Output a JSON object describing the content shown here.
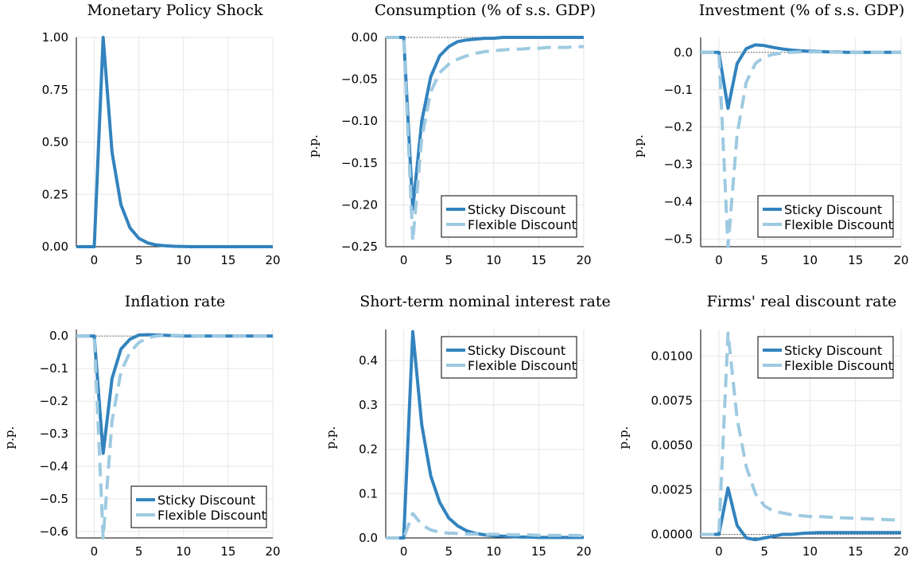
{
  "colors": {
    "sticky": "#3283be",
    "flexible": "#9ecae1"
  },
  "chart_data": [
    {
      "type": "line",
      "title": "Monetary Policy Shock",
      "ylabel": "",
      "xlim": [
        -2,
        20
      ],
      "ylim": [
        0,
        1
      ],
      "xticks": [
        "0",
        "5",
        "10",
        "15",
        "20"
      ],
      "yticks": [
        "0.00",
        "0.25",
        "0.50",
        "0.75",
        "1.00"
      ],
      "legend": "none",
      "series": [
        {
          "style": "solid",
          "color": "#3283be",
          "x": [
            -2,
            -1,
            0,
            1,
            2,
            3,
            4,
            5,
            6,
            7,
            8,
            9,
            10,
            11,
            12,
            13,
            14,
            15,
            16,
            17,
            18,
            19,
            20
          ],
          "y": [
            0,
            0,
            0,
            1.0,
            0.45,
            0.2,
            0.09,
            0.04,
            0.018,
            0.008,
            0.004,
            0.002,
            0.001,
            0,
            0,
            0,
            0,
            0,
            0,
            0,
            0,
            0,
            0
          ]
        }
      ]
    },
    {
      "type": "line",
      "title": "Consumption (% of s.s. GDP)",
      "ylabel": "p.p.",
      "xlim": [
        -2,
        20
      ],
      "ylim": [
        -0.25,
        0
      ],
      "xticks": [
        "0",
        "5",
        "10",
        "15",
        "20"
      ],
      "yticks": [
        "−0.25",
        "−0.20",
        "−0.15",
        "−0.10",
        "−0.05",
        "0.00"
      ],
      "legend": "bottom-right",
      "series": [
        {
          "name": "Sticky Discount",
          "style": "solid",
          "color": "#3283be",
          "x": [
            -2,
            -1,
            0,
            1,
            2,
            3,
            4,
            5,
            6,
            7,
            8,
            9,
            10,
            11,
            12,
            13,
            14,
            15,
            16,
            17,
            18,
            19,
            20
          ],
          "y": [
            0,
            0,
            0,
            -0.205,
            -0.1,
            -0.047,
            -0.022,
            -0.011,
            -0.005,
            -0.003,
            -0.002,
            -0.001,
            -0.001,
            0,
            0,
            0,
            0,
            0,
            0,
            0,
            0,
            0,
            0
          ]
        },
        {
          "name": "Flexible Discount",
          "style": "dashed",
          "color": "#9ecae1",
          "x": [
            -2,
            -1,
            0,
            1,
            2,
            3,
            4,
            5,
            6,
            7,
            8,
            9,
            10,
            11,
            12,
            13,
            14,
            15,
            16,
            17,
            18,
            19,
            20
          ],
          "y": [
            0,
            0,
            0,
            -0.243,
            -0.12,
            -0.065,
            -0.042,
            -0.032,
            -0.026,
            -0.022,
            -0.019,
            -0.017,
            -0.016,
            -0.015,
            -0.014,
            -0.014,
            -0.013,
            -0.013,
            -0.012,
            -0.012,
            -0.012,
            -0.011,
            -0.011
          ]
        }
      ]
    },
    {
      "type": "line",
      "title": "Investment (% of s.s. GDP)",
      "ylabel": "p.p.",
      "xlim": [
        -2,
        20
      ],
      "ylim": [
        -0.52,
        0.04
      ],
      "xticks": [
        "0",
        "5",
        "10",
        "15",
        "20"
      ],
      "yticks": [
        "−0.5",
        "−0.4",
        "−0.3",
        "−0.2",
        "−0.1",
        "0.0"
      ],
      "ytick_values": [
        -0.5,
        -0.4,
        -0.3,
        -0.2,
        -0.1,
        0
      ],
      "legend": "bottom-right",
      "series": [
        {
          "name": "Sticky Discount",
          "style": "solid",
          "color": "#3283be",
          "x": [
            -2,
            -1,
            0,
            1,
            2,
            3,
            4,
            5,
            6,
            7,
            8,
            9,
            10,
            11,
            12,
            13,
            14,
            15,
            16,
            17,
            18,
            19,
            20
          ],
          "y": [
            0,
            0,
            0,
            -0.15,
            -0.03,
            0.01,
            0.02,
            0.018,
            0.013,
            0.009,
            0.006,
            0.004,
            0.003,
            0.002,
            0.001,
            0.001,
            0,
            0,
            0,
            0,
            0,
            0,
            0
          ]
        },
        {
          "name": "Flexible Discount",
          "style": "dashed",
          "color": "#9ecae1",
          "x": [
            -2,
            -1,
            0,
            1,
            2,
            3,
            4,
            5,
            6,
            7,
            8,
            9,
            10,
            11,
            12,
            13,
            14,
            15,
            16,
            17,
            18,
            19,
            20
          ],
          "y": [
            0,
            0,
            0,
            -0.52,
            -0.22,
            -0.08,
            -0.03,
            -0.012,
            -0.005,
            -0.002,
            0,
            0.001,
            0.001,
            0.001,
            0.001,
            0,
            0,
            0,
            0,
            0,
            0,
            0,
            0
          ]
        }
      ]
    },
    {
      "type": "line",
      "title": "Inflation rate",
      "ylabel": "p.p.",
      "xlim": [
        -2,
        20
      ],
      "ylim": [
        -0.62,
        0.02
      ],
      "xticks": [
        "0",
        "5",
        "10",
        "15",
        "20"
      ],
      "yticks": [
        "−0.6",
        "−0.5",
        "−0.4",
        "−0.3",
        "−0.2",
        "−0.1",
        "0.0"
      ],
      "ytick_values": [
        -0.6,
        -0.5,
        -0.4,
        -0.3,
        -0.2,
        -0.1,
        0
      ],
      "legend": "bottom-right",
      "series": [
        {
          "name": "Sticky Discount",
          "style": "solid",
          "color": "#3283be",
          "x": [
            -2,
            -1,
            0,
            1,
            2,
            3,
            4,
            5,
            6,
            7,
            8,
            9,
            10,
            11,
            12,
            13,
            14,
            15,
            16,
            17,
            18,
            19,
            20
          ],
          "y": [
            0,
            0,
            0,
            -0.36,
            -0.13,
            -0.04,
            -0.01,
            0.003,
            0.004,
            0.003,
            0.002,
            0.001,
            0,
            0,
            0,
            0,
            0,
            0,
            0,
            0,
            0,
            0,
            0
          ]
        },
        {
          "name": "Flexible Discount",
          "style": "dashed",
          "color": "#9ecae1",
          "x": [
            -2,
            -1,
            0,
            1,
            2,
            3,
            4,
            5,
            6,
            7,
            8,
            9,
            10,
            11,
            12,
            13,
            14,
            15,
            16,
            17,
            18,
            19,
            20
          ],
          "y": [
            0,
            0,
            0,
            -0.62,
            -0.26,
            -0.11,
            -0.05,
            -0.02,
            -0.006,
            0,
            0.002,
            0.002,
            0.001,
            0.001,
            0,
            0,
            0,
            0,
            0,
            0,
            0,
            0,
            0
          ]
        }
      ]
    },
    {
      "type": "line",
      "title": "Short-term nominal interest rate",
      "ylabel": "p.p.",
      "xlim": [
        -2,
        20
      ],
      "ylim": [
        0,
        0.47
      ],
      "xticks": [
        "0",
        "5",
        "10",
        "15",
        "20"
      ],
      "yticks": [
        "0.0",
        "0.1",
        "0.2",
        "0.3",
        "0.4"
      ],
      "ytick_values": [
        0,
        0.1,
        0.2,
        0.3,
        0.4
      ],
      "legend": "top-right",
      "series": [
        {
          "name": "Sticky Discount",
          "style": "solid",
          "color": "#3283be",
          "x": [
            -2,
            -1,
            0,
            1,
            2,
            3,
            4,
            5,
            6,
            7,
            8,
            9,
            10,
            11,
            12,
            13,
            14,
            15,
            16,
            17,
            18,
            19,
            20
          ],
          "y": [
            0,
            0,
            0,
            0.465,
            0.255,
            0.14,
            0.08,
            0.045,
            0.027,
            0.016,
            0.01,
            0.007,
            0.005,
            0.004,
            0.003,
            0.002,
            0.002,
            0.001,
            0.001,
            0.001,
            0.001,
            0.001,
            0.001
          ]
        },
        {
          "name": "Flexible Discount",
          "style": "dashed",
          "color": "#9ecae1",
          "x": [
            -2,
            -1,
            0,
            1,
            2,
            3,
            4,
            5,
            6,
            7,
            8,
            9,
            10,
            11,
            12,
            13,
            14,
            15,
            16,
            17,
            18,
            19,
            20
          ],
          "y": [
            0,
            0,
            0,
            0.055,
            0.03,
            0.018,
            0.013,
            0.011,
            0.01,
            0.009,
            0.009,
            0.008,
            0.008,
            0.008,
            0.007,
            0.007,
            0.007,
            0.006,
            0.006,
            0.006,
            0.006,
            0.006,
            0.005
          ]
        }
      ]
    },
    {
      "type": "line",
      "title": "Firms' real discount rate",
      "ylabel": "p.p.",
      "xlim": [
        -2,
        20
      ],
      "ylim": [
        -0.0002,
        0.0115
      ],
      "xticks": [
        "0",
        "5",
        "10",
        "15",
        "20"
      ],
      "yticks": [
        "0.0000",
        "0.0025",
        "0.0050",
        "0.0075",
        "0.0100"
      ],
      "ytick_values": [
        0,
        0.0025,
        0.005,
        0.0075,
        0.01
      ],
      "legend": "top-right",
      "series": [
        {
          "name": "Sticky Discount",
          "style": "solid",
          "color": "#3283be",
          "x": [
            -2,
            -1,
            0,
            1,
            2,
            3,
            4,
            5,
            6,
            7,
            8,
            9,
            10,
            11,
            12,
            13,
            14,
            15,
            16,
            17,
            18,
            19,
            20
          ],
          "y": [
            0,
            0,
            0,
            0.0026,
            0.0005,
            -0.0002,
            -0.0003,
            -0.0002,
            -0.0001,
            0,
            0,
            5e-05,
            8e-05,
            0.0001,
            0.0001,
            0.0001,
            0.0001,
            0.0001,
            0.0001,
            0.0001,
            0.0001,
            0.0001,
            0.0001
          ]
        },
        {
          "name": "Flexible Discount",
          "style": "dashed",
          "color": "#9ecae1",
          "x": [
            -2,
            -1,
            0,
            1,
            2,
            3,
            4,
            5,
            6,
            7,
            8,
            9,
            10,
            11,
            12,
            13,
            14,
            15,
            16,
            17,
            18,
            19,
            20
          ],
          "y": [
            0,
            0,
            0,
            0.0113,
            0.0065,
            0.0038,
            0.0023,
            0.0016,
            0.0013,
            0.0012,
            0.0011,
            0.00105,
            0.001,
            0.001,
            0.00097,
            0.00094,
            0.00092,
            0.0009,
            0.00088,
            0.00086,
            0.00084,
            0.00082,
            0.0008
          ]
        }
      ]
    }
  ]
}
